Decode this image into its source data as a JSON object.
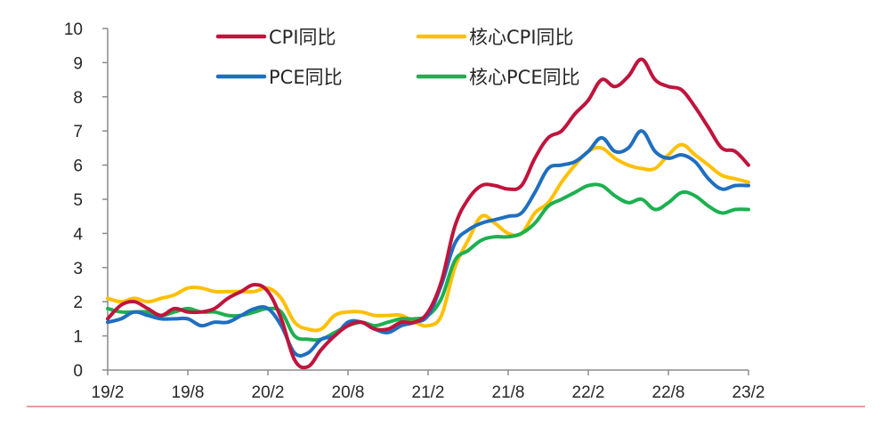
{
  "chart_data": {
    "type": "line",
    "x": [
      "19/2",
      "19/3",
      "19/4",
      "19/5",
      "19/6",
      "19/7",
      "19/8",
      "19/9",
      "19/10",
      "19/11",
      "19/12",
      "20/1",
      "20/2",
      "20/3",
      "20/4",
      "20/5",
      "20/6",
      "20/7",
      "20/8",
      "20/9",
      "20/10",
      "20/11",
      "20/12",
      "21/1",
      "21/2",
      "21/3",
      "21/4",
      "21/5",
      "21/6",
      "21/7",
      "21/8",
      "21/9",
      "21/10",
      "21/11",
      "21/12",
      "22/1",
      "22/2",
      "22/3",
      "22/4",
      "22/5",
      "22/6",
      "22/7",
      "22/8",
      "22/9",
      "22/10",
      "22/11",
      "22/12",
      "23/1",
      "23/2"
    ],
    "x_tick_labels": [
      "19/2",
      "19/8",
      "20/2",
      "20/8",
      "21/2",
      "21/8",
      "22/2",
      "22/8",
      "23/2"
    ],
    "y_tick_labels": [
      "0",
      "1",
      "2",
      "3",
      "4",
      "5",
      "6",
      "7",
      "8",
      "9",
      "10"
    ],
    "ylim": [
      0,
      10
    ],
    "series": [
      {
        "name": "CPI同比",
        "color": "#C0143C",
        "values": [
          1.5,
          1.9,
          2.0,
          1.8,
          1.6,
          1.8,
          1.7,
          1.7,
          1.8,
          2.1,
          2.3,
          2.5,
          2.3,
          1.5,
          0.3,
          0.1,
          0.6,
          1.0,
          1.3,
          1.4,
          1.2,
          1.2,
          1.4,
          1.4,
          1.7,
          2.6,
          4.2,
          5.0,
          5.4,
          5.4,
          5.3,
          5.4,
          6.2,
          6.8,
          7.0,
          7.5,
          7.9,
          8.5,
          8.3,
          8.6,
          9.1,
          8.5,
          8.3,
          8.2,
          7.7,
          7.1,
          6.5,
          6.4,
          6.0
        ]
      },
      {
        "name": "核心CPI同比",
        "color": "#FFC000",
        "values": [
          2.1,
          2.0,
          2.1,
          2.0,
          2.1,
          2.2,
          2.4,
          2.4,
          2.3,
          2.3,
          2.3,
          2.3,
          2.4,
          2.1,
          1.4,
          1.2,
          1.2,
          1.6,
          1.7,
          1.7,
          1.6,
          1.6,
          1.6,
          1.4,
          1.3,
          1.6,
          3.0,
          3.8,
          4.5,
          4.3,
          4.0,
          4.0,
          4.6,
          4.9,
          5.5,
          6.0,
          6.4,
          6.5,
          6.2,
          6.0,
          5.9,
          5.9,
          6.3,
          6.6,
          6.3,
          6.0,
          5.7,
          5.6,
          5.5
        ]
      },
      {
        "name": "PCE同比",
        "color": "#1F6FBF",
        "values": [
          1.4,
          1.5,
          1.7,
          1.6,
          1.5,
          1.5,
          1.5,
          1.3,
          1.4,
          1.4,
          1.6,
          1.8,
          1.8,
          1.3,
          0.5,
          0.5,
          0.9,
          1.0,
          1.4,
          1.4,
          1.2,
          1.1,
          1.3,
          1.4,
          1.6,
          2.5,
          3.7,
          4.1,
          4.3,
          4.4,
          4.5,
          4.6,
          5.2,
          5.9,
          6.0,
          6.1,
          6.4,
          6.8,
          6.4,
          6.5,
          7.0,
          6.4,
          6.2,
          6.3,
          6.1,
          5.6,
          5.3,
          5.4,
          5.4
        ]
      },
      {
        "name": "核心PCE同比",
        "color": "#1DB050",
        "values": [
          1.8,
          1.7,
          1.7,
          1.7,
          1.6,
          1.7,
          1.8,
          1.7,
          1.7,
          1.6,
          1.6,
          1.7,
          1.8,
          1.7,
          1.0,
          0.9,
          0.9,
          1.1,
          1.3,
          1.4,
          1.3,
          1.4,
          1.5,
          1.5,
          1.6,
          2.1,
          3.2,
          3.5,
          3.8,
          3.9,
          3.9,
          4.0,
          4.3,
          4.8,
          5.0,
          5.2,
          5.4,
          5.4,
          5.1,
          4.9,
          5.0,
          4.7,
          4.9,
          5.2,
          5.1,
          4.8,
          4.6,
          4.7,
          4.7
        ]
      }
    ],
    "legend_position": "top",
    "grid": false
  }
}
